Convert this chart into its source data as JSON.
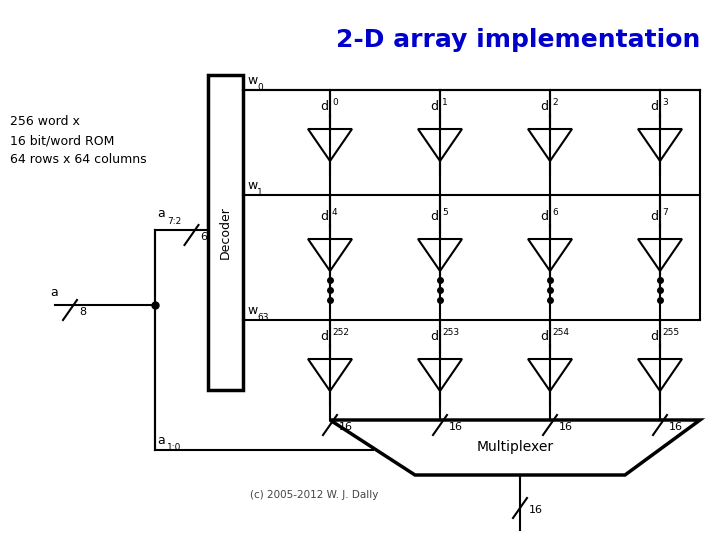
{
  "title": "2-D array implementation",
  "title_color": "#0000CC",
  "title_fontsize": 18,
  "title_fontweight": "bold",
  "copyright": "(c) 2005-2012 W. J. Dally",
  "bg_color": "#ffffff",
  "line_color": "#000000",
  "lw": 1.5,
  "lw_thick": 2.5,
  "decoder_label": "Decoder",
  "rom_text": "256 word x\n16 bit/word ROM\n64 rows x 64 columns",
  "mux_label": "Multiplexer",
  "cell_labels_row0": [
    [
      "d",
      "0"
    ],
    [
      "d",
      "1"
    ],
    [
      "d",
      "2"
    ],
    [
      "d",
      "3"
    ]
  ],
  "cell_labels_row1": [
    [
      "d",
      "4"
    ],
    [
      "d",
      "5"
    ],
    [
      "d",
      "6"
    ],
    [
      "d",
      "7"
    ]
  ],
  "cell_labels_row2": [
    [
      "d",
      "252"
    ],
    [
      "d",
      "253"
    ],
    [
      "d",
      "254"
    ],
    [
      "d",
      "255"
    ]
  ]
}
